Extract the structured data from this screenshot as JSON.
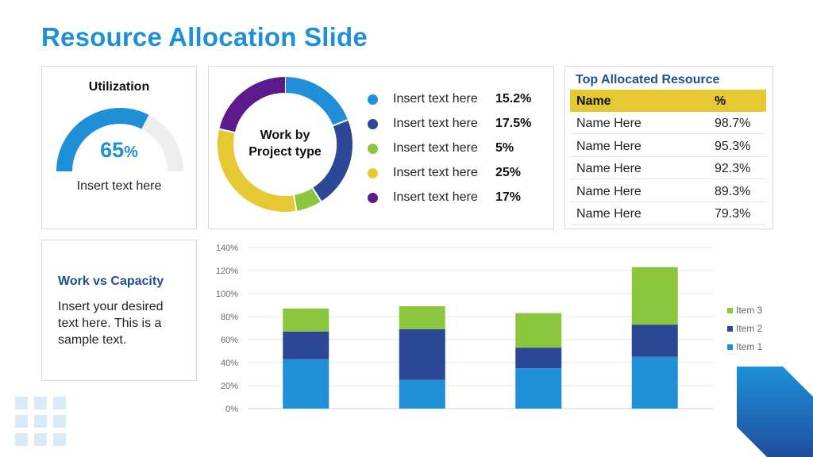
{
  "title": "Resource Allocation Slide",
  "utilization": {
    "title": "Utilization",
    "value": 65,
    "value_text": "65",
    "unit": "%",
    "caption": "Insert text here"
  },
  "donut": {
    "center_line1": "Work by",
    "center_line2": "Project type",
    "items": [
      {
        "label": "Insert text here",
        "value_text": "15.2%",
        "value": 15.2,
        "color": "#1f8fd8"
      },
      {
        "label": "Insert text here",
        "value_text": "17.5%",
        "value": 17.5,
        "color": "#2b4796"
      },
      {
        "label": "Insert text here",
        "value_text": "5%",
        "value": 5,
        "color": "#8cc63f"
      },
      {
        "label": "Insert text here",
        "value_text": "25%",
        "value": 25,
        "color": "#e6c832"
      },
      {
        "label": "Insert text here",
        "value_text": "17%",
        "value": 17,
        "color": "#5c1a8c"
      }
    ]
  },
  "top_allocated": {
    "title": "Top Allocated Resource",
    "header_name": "Name",
    "header_pct": "%",
    "rows": [
      {
        "name": "Name Here",
        "pct": "98.7%"
      },
      {
        "name": "Name Here",
        "pct": "95.3%"
      },
      {
        "name": "Name Here",
        "pct": "92.3%"
      },
      {
        "name": "Name Here",
        "pct": "89.3%"
      },
      {
        "name": "Name Here",
        "pct": "79.3%"
      }
    ]
  },
  "work_vs_capacity": {
    "title": "Work vs Capacity",
    "text": "Insert your desired text here. This is a sample text."
  },
  "chart_data": {
    "type": "bar",
    "stacked": true,
    "categories": [
      "",
      "",
      "",
      ""
    ],
    "series": [
      {
        "name": "Item 1",
        "values": [
          43,
          25,
          35,
          45
        ],
        "color": "#1f8fd8"
      },
      {
        "name": "Item 2",
        "values": [
          24,
          44,
          18,
          28
        ],
        "color": "#2b4796"
      },
      {
        "name": "Item 3",
        "values": [
          20,
          20,
          30,
          50
        ],
        "color": "#8cc63f"
      }
    ],
    "ylim": [
      0,
      140
    ],
    "yticks": [
      "0%",
      "20%",
      "40%",
      "60%",
      "80%",
      "100%",
      "120%",
      "140%"
    ],
    "ytick_values": [
      0,
      20,
      40,
      60,
      80,
      100,
      120,
      140
    ],
    "grid": true,
    "legend": "right"
  },
  "colors": {
    "accent": "#1f8fd8",
    "navy": "#1f4e8c",
    "highlight": "#e6c832"
  }
}
